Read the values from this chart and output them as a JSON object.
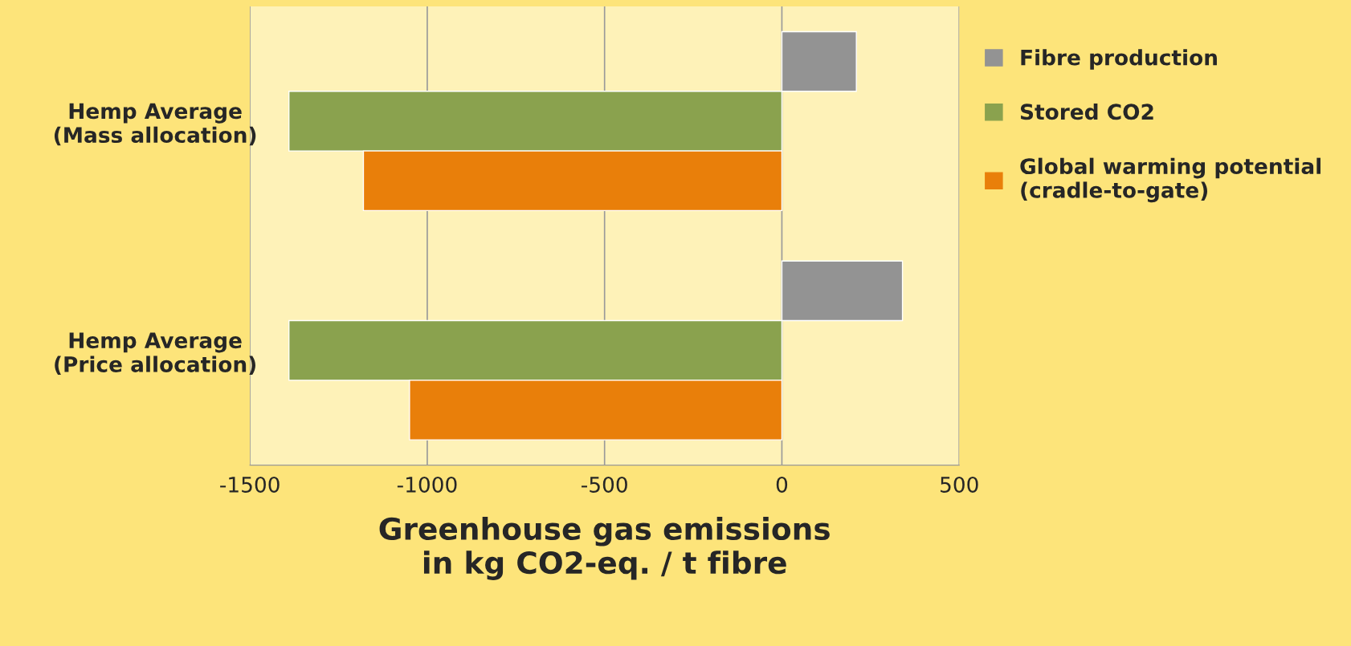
{
  "chart_data": {
    "type": "bar",
    "orientation": "horizontal",
    "categories": [
      "Hemp Average\n(Mass allocation)",
      "Hemp Average\n(Price allocation)"
    ],
    "series": [
      {
        "name": "Fibre production",
        "color": "#939393",
        "values": [
          210,
          340
        ]
      },
      {
        "name": "Stored CO2",
        "color": "#8aa24e",
        "values": [
          -1390,
          -1390
        ]
      },
      {
        "name": "Global warming potential\n(cradle-to-gate)",
        "color": "#e97f0a",
        "values": [
          -1180,
          -1050
        ]
      }
    ],
    "xlabel": "Greenhouse gas emissions\nin kg CO2-eq. / t fibre",
    "xlim": [
      -1500,
      500
    ],
    "xticks": [
      -1500,
      -1000,
      -500,
      0,
      500
    ],
    "grid": "x",
    "legend": "right"
  }
}
